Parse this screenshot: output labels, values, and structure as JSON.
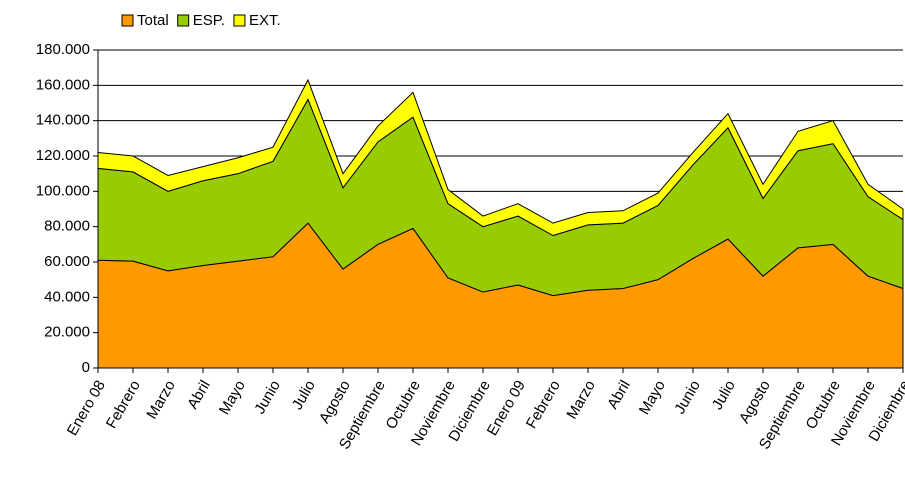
{
  "chart_data": {
    "type": "stacked_area",
    "categories": [
      "Enero 08",
      "Febrero",
      "Marzo",
      "Abril",
      "Mayo",
      "Junio",
      "Julio",
      "Agosto",
      "Septiembre",
      "Octubre",
      "Noviembre",
      "Diciembre",
      "Enero 09",
      "Febrero",
      "Marzo",
      "Abril",
      "Mayo",
      "Junio",
      "Julio",
      "Agosto",
      "Septiembre",
      "Octubre",
      "Noviembre",
      "Diciembre"
    ],
    "series": [
      {
        "name": "Total",
        "color": "#ff9900",
        "values": [
          61000,
          60500,
          55000,
          58000,
          60500,
          63000,
          82000,
          56000,
          70000,
          79000,
          51000,
          43000,
          47000,
          41000,
          44000,
          45000,
          50000,
          62000,
          73000,
          52000,
          68000,
          70000,
          52000,
          45000
        ]
      },
      {
        "name": "ESP.",
        "color": "#99cc00",
        "values": [
          52000,
          50500,
          45000,
          48000,
          49500,
          54000,
          70000,
          46000,
          58000,
          63000,
          42000,
          37000,
          39000,
          34000,
          37000,
          37000,
          42000,
          53000,
          63000,
          44000,
          55000,
          57000,
          45000,
          39000
        ]
      },
      {
        "name": "EXT.",
        "color": "#ffff00",
        "values": [
          9000,
          9000,
          9000,
          8000,
          9000,
          8000,
          11000,
          8000,
          9000,
          14000,
          8000,
          6000,
          7000,
          7000,
          7000,
          7000,
          7000,
          7000,
          8000,
          8000,
          11000,
          13000,
          7000,
          6000
        ]
      }
    ],
    "ylim": [
      0,
      180000
    ],
    "yticks": [
      0,
      {
        "value": 20000,
        "label": "20.000"
      },
      {
        "value": 40000,
        "label": "40.000"
      },
      {
        "value": 60000,
        "label": "60.000"
      },
      {
        "value": 80000,
        "label": "80.000"
      },
      {
        "value": 100000,
        "label": "100.000"
      },
      {
        "value": 120000,
        "label": "120.000"
      },
      {
        "value": 140000,
        "label": "140.000"
      },
      {
        "value": 160000,
        "label": "160.000"
      },
      {
        "value": 180000,
        "label": "180.000"
      }
    ],
    "grid": true,
    "legend": "top"
  }
}
